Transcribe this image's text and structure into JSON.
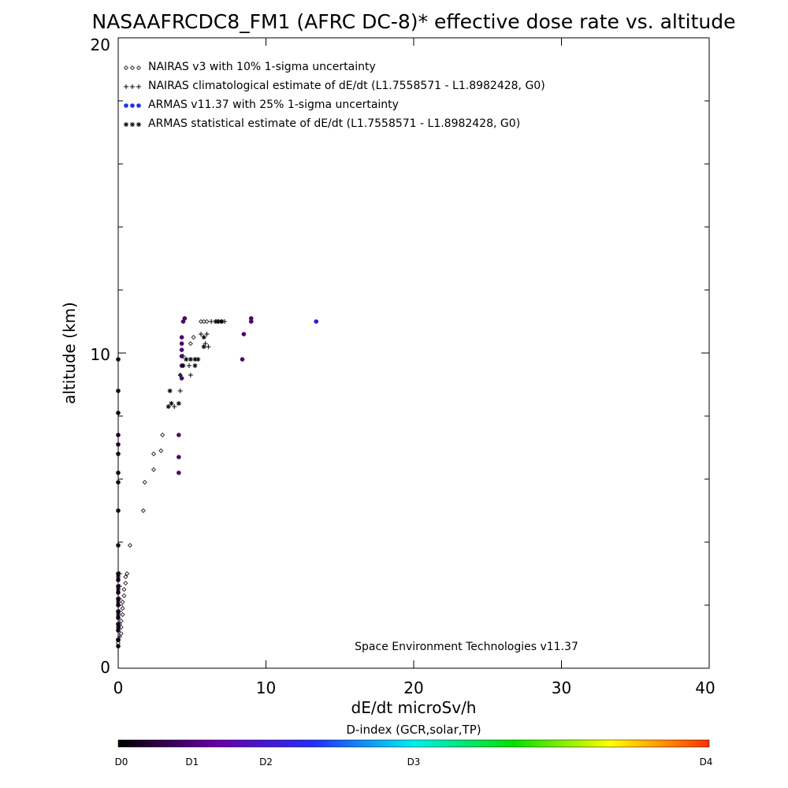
{
  "chart_data": {
    "type": "scatter",
    "title": "NASAAFRCDC8_FM1 (AFRC DC-8)* effective dose rate vs. altitude",
    "xlabel": "dE/dt microSv/h",
    "ylabel": "altitude (km)",
    "xlim": [
      0,
      40
    ],
    "ylim": [
      0,
      20
    ],
    "x_ticks": [
      "0",
      "10",
      "20",
      "30",
      "40"
    ],
    "y_ticks": [
      "0",
      "10",
      "20"
    ],
    "credit": "Space Environment Technologies v11.37",
    "legend_placement": "top-left",
    "legend": [
      {
        "label": "NAIRAS v3 with 10% 1-sigma uncertainty",
        "marker": "diamond",
        "color": "#000000"
      },
      {
        "label": "NAIRAS climatological estimate of dE/dt (L1.7558571 - L1.8982428, G0)",
        "marker": "plus",
        "color": "#000000"
      },
      {
        "label": "ARMAS v11.37 with 25% 1-sigma uncertainty",
        "marker": "dot",
        "color": "#1a35e0"
      },
      {
        "label": "ARMAS statistical estimate of dE/dt (L1.7558571 - L1.8982428, G0)",
        "marker": "asterisk",
        "color": "#000000"
      }
    ],
    "series": [
      {
        "name": "NAIRAS v3 with 10% 1-sigma uncertainty",
        "marker": "diamond",
        "points": [
          [
            0.0,
            0.8
          ],
          [
            0.2,
            1.1
          ],
          [
            0.2,
            1.3
          ],
          [
            0.2,
            1.5
          ],
          [
            0.3,
            1.7
          ],
          [
            0.3,
            1.9
          ],
          [
            0.3,
            2.1
          ],
          [
            0.4,
            2.3
          ],
          [
            0.4,
            2.5
          ],
          [
            0.5,
            2.7
          ],
          [
            0.5,
            2.9
          ],
          [
            0.6,
            3.0
          ],
          [
            0.8,
            3.9
          ],
          [
            1.7,
            5.0
          ],
          [
            1.8,
            5.9
          ],
          [
            2.4,
            6.3
          ],
          [
            2.4,
            6.8
          ],
          [
            2.9,
            6.9
          ],
          [
            3.0,
            7.4
          ],
          [
            4.2,
            9.3
          ],
          [
            4.9,
            10.3
          ],
          [
            5.1,
            10.5
          ],
          [
            5.6,
            11.0
          ],
          [
            5.8,
            11.0
          ],
          [
            6.0,
            11.0
          ],
          [
            7.0,
            11.0
          ]
        ]
      },
      {
        "name": "NAIRAS climatological estimate of dE/dt (L1.7558571 - L1.8982428, G0)",
        "marker": "plus",
        "points": [
          [
            0.1,
            1.0
          ],
          [
            0.1,
            1.4
          ],
          [
            0.1,
            1.8
          ],
          [
            0.1,
            2.2
          ],
          [
            0.1,
            2.6
          ],
          [
            0.1,
            3.0
          ],
          [
            3.8,
            8.3
          ],
          [
            4.2,
            8.8
          ],
          [
            4.2,
            9.3
          ],
          [
            4.4,
            9.6
          ],
          [
            4.4,
            9.9
          ],
          [
            4.8,
            9.6
          ],
          [
            4.9,
            9.3
          ],
          [
            5.6,
            10.6
          ],
          [
            5.9,
            10.3
          ],
          [
            6.0,
            10.6
          ],
          [
            6.1,
            10.2
          ],
          [
            6.3,
            11.0
          ],
          [
            6.7,
            11.0
          ],
          [
            7.2,
            11.0
          ]
        ]
      },
      {
        "name": "ARMAS v11.37 with 25% 1-sigma uncertainty",
        "marker": "dot",
        "points": [
          [
            0.0,
            0.7
          ],
          [
            0.0,
            0.9
          ],
          [
            0.0,
            1.2
          ],
          [
            0.0,
            1.4
          ],
          [
            0.0,
            1.6
          ],
          [
            0.0,
            1.8
          ],
          [
            0.0,
            2.0
          ],
          [
            0.0,
            2.2
          ],
          [
            0.0,
            2.4
          ],
          [
            0.0,
            2.6
          ],
          [
            0.0,
            2.8
          ],
          [
            0.0,
            3.0
          ],
          [
            0.0,
            3.9
          ],
          [
            0.0,
            5.0
          ],
          [
            0.0,
            5.9
          ],
          [
            0.0,
            6.2
          ],
          [
            0.0,
            6.8
          ],
          [
            0.0,
            7.1
          ],
          [
            0.0,
            7.4
          ],
          [
            0.0,
            8.1
          ],
          [
            0.0,
            8.8
          ],
          [
            0.0,
            9.8
          ],
          [
            4.1,
            6.2
          ],
          [
            4.1,
            6.7
          ],
          [
            4.1,
            7.4
          ],
          [
            4.3,
            9.2
          ],
          [
            4.3,
            9.6
          ],
          [
            4.3,
            9.9
          ],
          [
            4.3,
            10.1
          ],
          [
            4.3,
            10.3
          ],
          [
            4.3,
            10.5
          ],
          [
            4.4,
            11.0
          ],
          [
            4.5,
            11.1
          ],
          [
            8.4,
            9.8
          ],
          [
            8.5,
            10.6
          ],
          [
            9.0,
            11.0
          ],
          [
            9.0,
            11.1
          ],
          [
            13.4,
            11.0
          ]
        ]
      },
      {
        "name": "ARMAS statistical estimate of dE/dt (L1.7558571 - L1.8982428, G0)",
        "marker": "asterisk",
        "points": [
          [
            0.0,
            0.9
          ],
          [
            0.0,
            1.3
          ],
          [
            0.0,
            1.7
          ],
          [
            0.0,
            2.1
          ],
          [
            0.0,
            2.5
          ],
          [
            0.0,
            2.9
          ],
          [
            3.4,
            8.3
          ],
          [
            3.6,
            8.4
          ],
          [
            3.5,
            8.8
          ],
          [
            4.1,
            8.4
          ],
          [
            4.4,
            9.6
          ],
          [
            4.6,
            9.8
          ],
          [
            4.9,
            9.8
          ],
          [
            5.2,
            9.8
          ],
          [
            5.2,
            9.6
          ],
          [
            5.4,
            9.8
          ],
          [
            5.8,
            10.5
          ],
          [
            5.8,
            10.2
          ],
          [
            6.6,
            11.0
          ],
          [
            6.8,
            11.0
          ],
          [
            7.0,
            11.0
          ]
        ]
      }
    ],
    "colorbar": {
      "title": "D-index (GCR,solar,TP)",
      "labels": [
        "D0",
        "D1",
        "D2",
        "D3",
        "D4"
      ],
      "label_positions": [
        0,
        0.125,
        0.25,
        0.5,
        1.0
      ],
      "color_stops": [
        "#000000",
        "#6a00a8",
        "#2030ff",
        "#00f0f0",
        "#00e000",
        "#ffff00",
        "#ff3000"
      ]
    }
  }
}
